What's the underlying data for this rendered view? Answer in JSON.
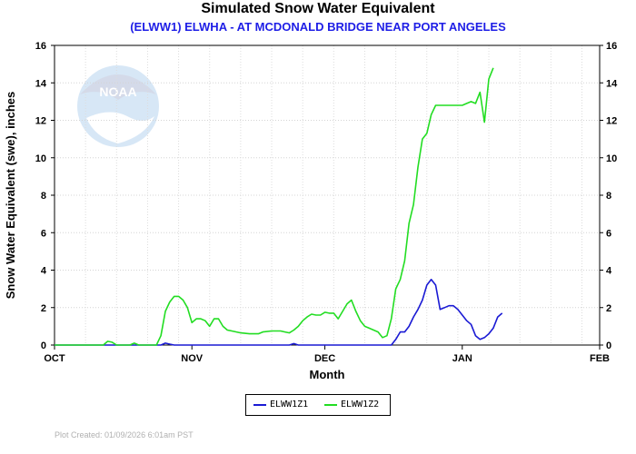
{
  "chart_data": {
    "type": "line",
    "title": "Simulated Snow Water Equivalent",
    "subtitle": "(ELWW1) ELWHA - AT MCDONALD BRIDGE NEAR PORT ANGELES",
    "xlabel": "Month",
    "ylabel": "Snow Water Equivalent (swe),  inches",
    "x_ticks": [
      "OCT",
      "NOV",
      "DEC",
      "JAN",
      "FEB"
    ],
    "y_ticks": [
      "0",
      "2",
      "4",
      "6",
      "8",
      "10",
      "12",
      "14",
      "16"
    ],
    "ylim": [
      0,
      16
    ],
    "x_axis_note": "x values are days after Oct 1 (OCT=0, NOV=31, DEC=61, JAN=92, FEB=123)",
    "legend_position": "bottom-center",
    "series": [
      {
        "name": "ELWW1Z1",
        "color": "#1a1ad4",
        "points": [
          [
            0,
            0
          ],
          [
            24,
            0
          ],
          [
            25,
            0.1
          ],
          [
            26,
            0.05
          ],
          [
            27,
            0
          ],
          [
            53,
            0
          ],
          [
            54,
            0.08
          ],
          [
            55,
            0
          ],
          [
            76,
            0
          ],
          [
            77,
            0.3
          ],
          [
            78,
            0.7
          ],
          [
            79,
            0.7
          ],
          [
            80,
            1.0
          ],
          [
            81,
            1.5
          ],
          [
            82,
            1.9
          ],
          [
            83,
            2.4
          ],
          [
            84,
            3.2
          ],
          [
            85,
            3.5
          ],
          [
            86,
            3.2
          ],
          [
            87,
            1.9
          ],
          [
            88,
            2.0
          ],
          [
            89,
            2.1
          ],
          [
            90,
            2.1
          ],
          [
            91,
            1.9
          ],
          [
            92,
            1.6
          ],
          [
            93,
            1.3
          ],
          [
            94,
            1.1
          ],
          [
            95,
            0.5
          ],
          [
            96,
            0.3
          ],
          [
            97,
            0.4
          ],
          [
            98,
            0.6
          ],
          [
            99,
            0.9
          ],
          [
            100,
            1.5
          ],
          [
            101,
            1.7
          ]
        ]
      },
      {
        "name": "ELWW1Z2",
        "color": "#22dd22",
        "points": [
          [
            0,
            0
          ],
          [
            11,
            0
          ],
          [
            12,
            0.2
          ],
          [
            13,
            0.15
          ],
          [
            14,
            0
          ],
          [
            17,
            0
          ],
          [
            18,
            0.1
          ],
          [
            19,
            0
          ],
          [
            23,
            0
          ],
          [
            24,
            0.5
          ],
          [
            25,
            1.8
          ],
          [
            26,
            2.3
          ],
          [
            27,
            2.6
          ],
          [
            28,
            2.6
          ],
          [
            29,
            2.4
          ],
          [
            30,
            2.0
          ],
          [
            31,
            1.2
          ],
          [
            32,
            1.4
          ],
          [
            33,
            1.4
          ],
          [
            34,
            1.3
          ],
          [
            35,
            1.0
          ],
          [
            36,
            1.4
          ],
          [
            37,
            1.4
          ],
          [
            38,
            1.0
          ],
          [
            39,
            0.8
          ],
          [
            40,
            0.75
          ],
          [
            42,
            0.65
          ],
          [
            44,
            0.6
          ],
          [
            46,
            0.6
          ],
          [
            47,
            0.7
          ],
          [
            49,
            0.75
          ],
          [
            51,
            0.75
          ],
          [
            52,
            0.7
          ],
          [
            53,
            0.65
          ],
          [
            54,
            0.8
          ],
          [
            55,
            1.0
          ],
          [
            56,
            1.3
          ],
          [
            57,
            1.5
          ],
          [
            58,
            1.65
          ],
          [
            59,
            1.6
          ],
          [
            60,
            1.6
          ],
          [
            61,
            1.75
          ],
          [
            62,
            1.7
          ],
          [
            63,
            1.7
          ],
          [
            64,
            1.4
          ],
          [
            65,
            1.8
          ],
          [
            66,
            2.2
          ],
          [
            67,
            2.4
          ],
          [
            68,
            1.8
          ],
          [
            69,
            1.3
          ],
          [
            70,
            1.0
          ],
          [
            71,
            0.9
          ],
          [
            72,
            0.8
          ],
          [
            73,
            0.7
          ],
          [
            74,
            0.4
          ],
          [
            75,
            0.5
          ],
          [
            76,
            1.4
          ],
          [
            77,
            3.0
          ],
          [
            78,
            3.5
          ],
          [
            79,
            4.5
          ],
          [
            80,
            6.5
          ],
          [
            81,
            7.5
          ],
          [
            82,
            9.5
          ],
          [
            83,
            11.0
          ],
          [
            84,
            11.3
          ],
          [
            85,
            12.3
          ],
          [
            86,
            12.8
          ],
          [
            87,
            12.8
          ],
          [
            88,
            12.8
          ],
          [
            89,
            12.8
          ],
          [
            90,
            12.8
          ],
          [
            91,
            12.8
          ],
          [
            92,
            12.8
          ],
          [
            93,
            12.9
          ],
          [
            94,
            13.0
          ],
          [
            95,
            12.9
          ],
          [
            96,
            13.5
          ],
          [
            97,
            11.9
          ],
          [
            98,
            14.2
          ],
          [
            99,
            14.8
          ]
        ]
      }
    ]
  },
  "legend": {
    "z1": "ELWW1Z1",
    "z2": "ELWW1Z2"
  },
  "footer": "Plot Created: 01/09/2026 6:01am PST",
  "logo": {
    "text": "NOAA"
  }
}
